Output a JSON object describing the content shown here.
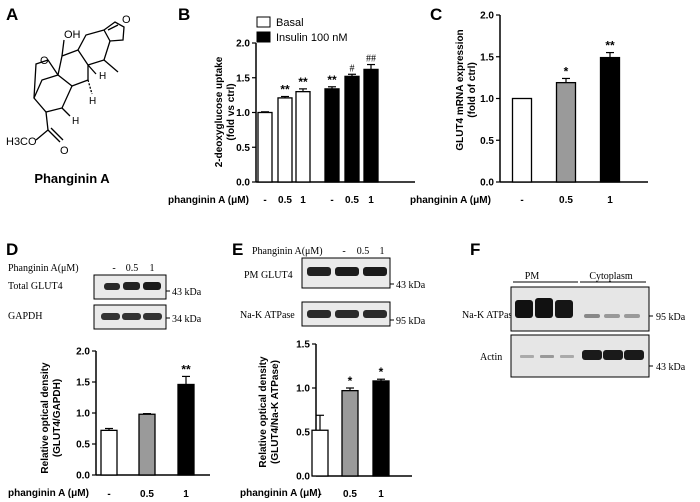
{
  "panels": {
    "A": {
      "letter": "A",
      "compound_name": "Phanginin A",
      "atoms": {
        "oh": "OH",
        "o_ring": "O",
        "o_furan": "O",
        "o_ester": "O",
        "meo": "H3CO",
        "h1": "H",
        "h2": "H",
        "h3": "H"
      }
    },
    "B": {
      "letter": "B",
      "legend": [
        "Basal",
        "Insulin 100 nM"
      ],
      "treatment_label": "phanginin A (μM)"
    },
    "C": {
      "letter": "C",
      "treatment_label": "phanginin A (μM)"
    },
    "D": {
      "letter": "D",
      "blot": {
        "header": "Phanginin A(μM)",
        "lanes": [
          "-",
          "0.5",
          "1"
        ],
        "rows": [
          "Total GLUT4",
          "GAPDH"
        ],
        "markers": [
          "43 kDa",
          "34 kDa"
        ]
      },
      "treatment_label": "phanginin A (μM)"
    },
    "E": {
      "letter": "E",
      "blot": {
        "header": "Phanginin A(μM)",
        "lanes": [
          "-",
          "0.5",
          "1"
        ],
        "rows": [
          "PM GLUT4",
          "Na-K ATPase"
        ],
        "markers": [
          "43 kDa",
          "95 kDa"
        ]
      },
      "treatment_label": "phanginin A (μM)"
    },
    "F": {
      "letter": "F",
      "blot": {
        "groups": [
          "PM",
          "Cytoplasm"
        ],
        "rows": [
          "Na-K ATPase",
          "Actin"
        ],
        "markers": [
          "95 kDa",
          "43 kDa"
        ]
      }
    }
  },
  "chart_data": [
    {
      "id": "B",
      "type": "bar",
      "ylabel": "2-deoxyglucose uptake\n(fold vs ctrl)",
      "ylim": [
        0,
        2.0
      ],
      "yticks": [
        "0.0",
        "0.5",
        "1.0",
        "1.5",
        "2.0"
      ],
      "categories": [
        "-",
        "0.5",
        "1",
        "-",
        "0.5",
        "1"
      ],
      "series": [
        {
          "name": "Basal",
          "color": "#ffffff",
          "values": [
            1.0,
            1.21,
            1.3,
            null,
            null,
            null
          ],
          "errors": [
            0.01,
            0.02,
            0.04,
            null,
            null,
            null
          ],
          "labels": [
            "",
            "**",
            "**",
            "",
            "",
            ""
          ]
        },
        {
          "name": "Insulin 100 nM",
          "color": "#000000",
          "values": [
            null,
            null,
            null,
            1.34,
            1.52,
            1.62
          ],
          "errors": [
            null,
            null,
            null,
            0.03,
            0.03,
            0.07
          ],
          "labels": [
            "",
            "",
            "",
            "**",
            "#",
            "##"
          ]
        }
      ]
    },
    {
      "id": "C",
      "type": "bar",
      "ylabel": "GLUT4 mRNA expression\n(fold of ctrl)",
      "ylim": [
        0,
        2.0
      ],
      "yticks": [
        "0.0",
        "0.5",
        "1.0",
        "1.5",
        "2.0"
      ],
      "categories": [
        "-",
        "0.5",
        "1"
      ],
      "values": [
        1.0,
        1.19,
        1.49
      ],
      "errors": [
        0.0,
        0.05,
        0.06
      ],
      "colors": [
        "#ffffff",
        "#9a9a9a",
        "#000000"
      ],
      "labels": [
        "",
        "*",
        "**"
      ]
    },
    {
      "id": "D",
      "type": "bar",
      "ylabel": "Relative optical density\n(GLUT4/GAPDH)",
      "ylim": [
        0,
        2.0
      ],
      "yticks": [
        "0.0",
        "0.5",
        "1.0",
        "1.5",
        "2.0"
      ],
      "categories": [
        "-",
        "0.5",
        "1"
      ],
      "values": [
        0.72,
        0.98,
        1.46
      ],
      "errors": [
        0.03,
        0.01,
        0.13
      ],
      "colors": [
        "#ffffff",
        "#9a9a9a",
        "#000000"
      ],
      "labels": [
        "",
        "",
        "**"
      ]
    },
    {
      "id": "E",
      "type": "bar",
      "ylabel": "Relative optical density\n(GLUT4/Na-K ATPase)",
      "ylim": [
        0,
        1.5
      ],
      "yticks": [
        "0.0",
        "0.5",
        "1.0",
        "1.5"
      ],
      "categories": [
        "-",
        "0.5",
        "1"
      ],
      "values": [
        0.52,
        0.97,
        1.08
      ],
      "errors": [
        0.17,
        0.03,
        0.02
      ],
      "colors": [
        "#ffffff",
        "#9a9a9a",
        "#000000"
      ],
      "labels": [
        "",
        "*",
        "*"
      ]
    }
  ]
}
